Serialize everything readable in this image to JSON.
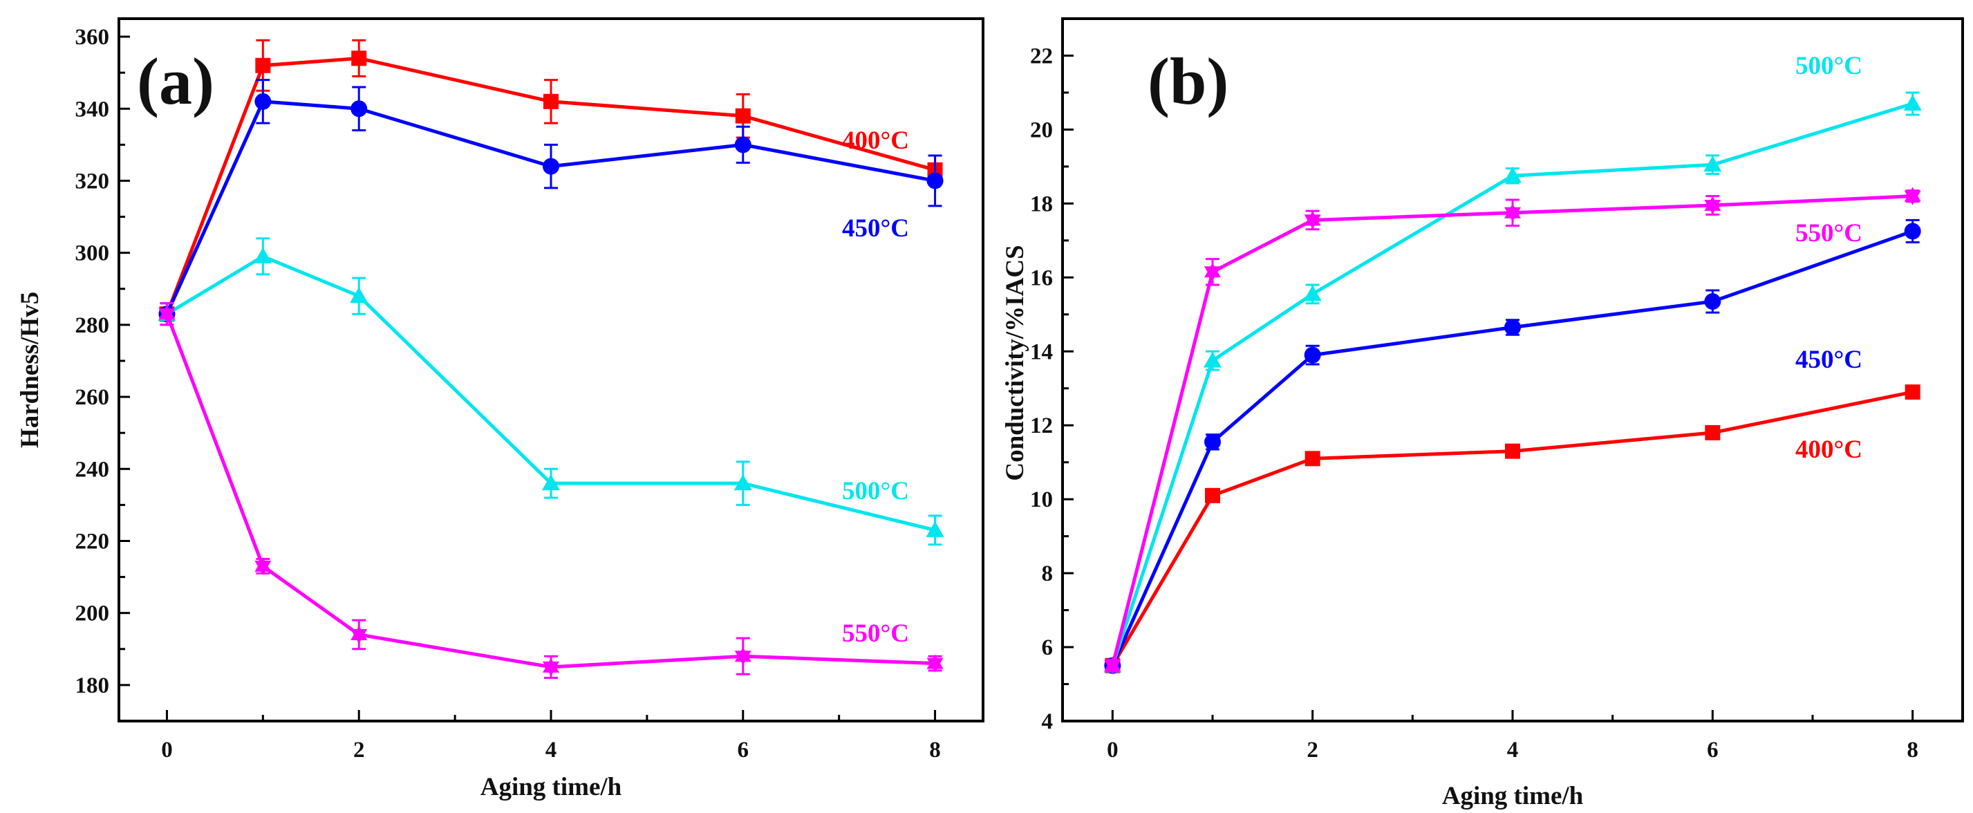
{
  "chart_data": [
    {
      "type": "line",
      "panel_label": "(a)",
      "xlabel": "Aging time/h",
      "ylabel": "Hardness/Hv5",
      "xlim": [
        -0.5,
        8.5
      ],
      "ylim": [
        170,
        365
      ],
      "xticks": [
        0,
        2,
        4,
        6,
        8
      ],
      "yticks": [
        180,
        200,
        220,
        240,
        260,
        280,
        300,
        320,
        340,
        360
      ],
      "x": [
        0,
        1,
        2,
        4,
        6,
        8
      ],
      "series": [
        {
          "name": "400°C",
          "color": "#ff0000",
          "marker": "square",
          "values": [
            283,
            352,
            354,
            342,
            338,
            323
          ],
          "errors": [
            3,
            7,
            5,
            6,
            6,
            4
          ]
        },
        {
          "name": "450°C",
          "color": "#0000ff",
          "marker": "circle",
          "values": [
            283,
            342,
            340,
            324,
            330,
            320
          ],
          "errors": [
            3,
            6,
            6,
            6,
            5,
            7
          ]
        },
        {
          "name": "500°C",
          "color": "#00e5ee",
          "marker": "triangle-up",
          "values": [
            283,
            299,
            288,
            236,
            236,
            223
          ],
          "errors": [
            3,
            5,
            5,
            4,
            6,
            4
          ]
        },
        {
          "name": "550°C",
          "color": "#ff00ff",
          "marker": "star",
          "values": [
            283,
            213,
            194,
            185,
            188,
            186
          ],
          "errors": [
            3,
            2,
            4,
            3,
            5,
            2
          ]
        }
      ],
      "series_labels": [
        {
          "text": "400°C",
          "color": "#ff0000"
        },
        {
          "text": "450°C",
          "color": "#0000ff"
        },
        {
          "text": "500°C",
          "color": "#00e5ee"
        },
        {
          "text": "550°C",
          "color": "#ff00ff"
        }
      ]
    },
    {
      "type": "line",
      "panel_label": "(b)",
      "xlabel": "Aging time/h",
      "ylabel": "Conductivity/%IACS",
      "xlim": [
        -0.5,
        8.5
      ],
      "ylim": [
        4,
        23
      ],
      "xticks": [
        0,
        2,
        4,
        6,
        8
      ],
      "yticks": [
        4,
        6,
        8,
        10,
        12,
        14,
        16,
        18,
        20,
        22
      ],
      "x": [
        0,
        1,
        2,
        4,
        6,
        8
      ],
      "series": [
        {
          "name": "400°C",
          "color": "#ff0000",
          "marker": "square",
          "values": [
            5.5,
            10.1,
            11.1,
            11.3,
            11.8,
            12.9
          ],
          "errors": [
            0.15,
            0.15,
            0.15,
            0.15,
            0.15,
            0.15
          ]
        },
        {
          "name": "450°C",
          "color": "#0000ff",
          "marker": "circle",
          "values": [
            5.5,
            11.55,
            13.9,
            14.65,
            15.35,
            17.25
          ],
          "errors": [
            0.15,
            0.2,
            0.25,
            0.2,
            0.3,
            0.3
          ]
        },
        {
          "name": "500°C",
          "color": "#00e5ee",
          "marker": "triangle-up",
          "values": [
            5.5,
            13.75,
            15.55,
            18.75,
            19.05,
            20.7
          ],
          "errors": [
            0.15,
            0.25,
            0.25,
            0.2,
            0.25,
            0.3
          ]
        },
        {
          "name": "550°C",
          "color": "#ff00ff",
          "marker": "star",
          "values": [
            5.5,
            16.15,
            17.55,
            17.75,
            17.95,
            18.2
          ],
          "errors": [
            0.15,
            0.35,
            0.25,
            0.35,
            0.25,
            0.15
          ]
        }
      ],
      "series_labels": [
        {
          "text": "500°C",
          "color": "#00e5ee"
        },
        {
          "text": "550°C",
          "color": "#ff00ff"
        },
        {
          "text": "450°C",
          "color": "#0000ff"
        },
        {
          "text": "400°C",
          "color": "#ff0000"
        }
      ]
    }
  ]
}
